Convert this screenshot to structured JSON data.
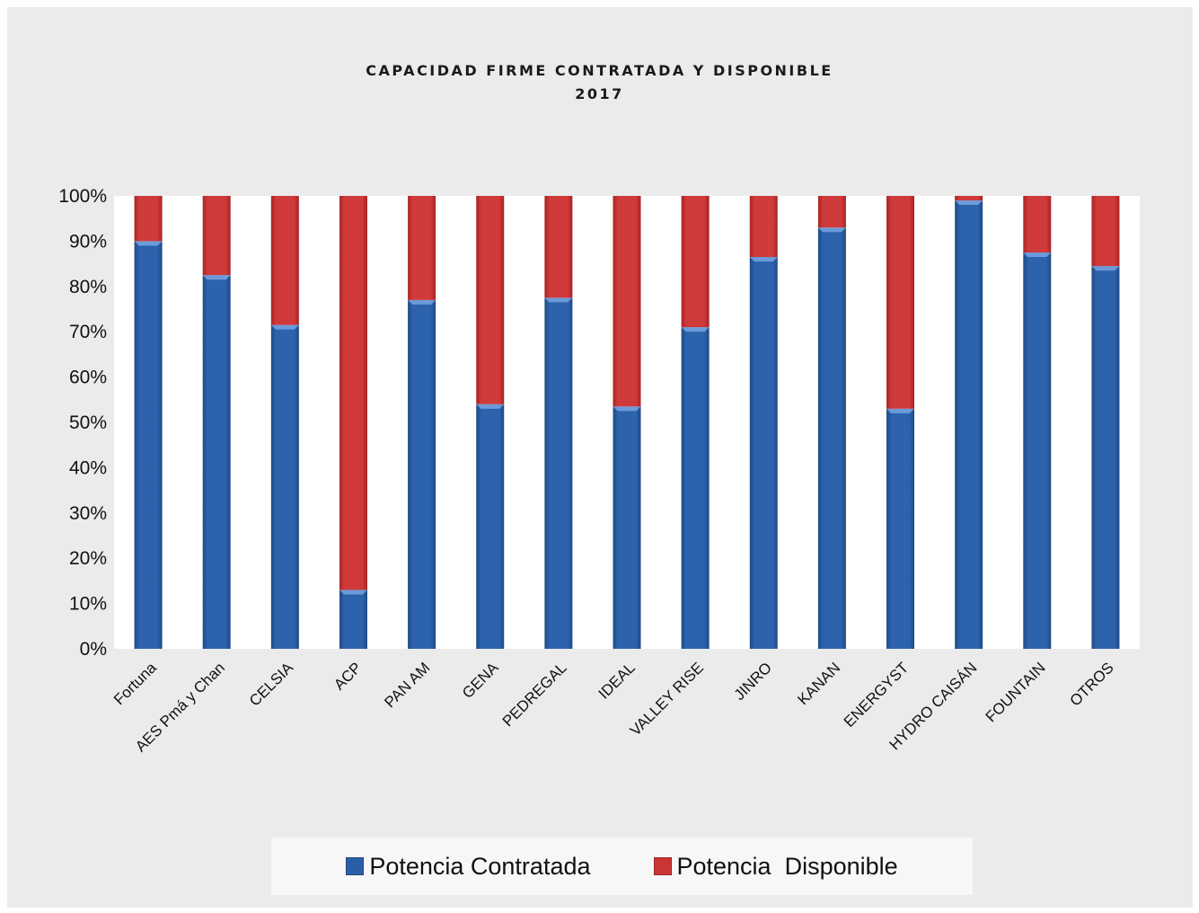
{
  "chart_data": {
    "type": "bar",
    "stacked": true,
    "percent_stacked": true,
    "title": "CAPACIDAD FIRME CONTRATADA Y DISPONIBLE",
    "subtitle": "2017",
    "categories": [
      "Fortuna",
      "AES Pmá y Chan",
      "CELSIA",
      "ACP",
      "PAN AM",
      "GENA",
      "PEDREGAL",
      "IDEAL",
      "VALLEY RISE",
      "JINRO",
      "KANAN",
      "ENERGYST",
      "HYDRO CAISÁN",
      "FOUNTAIN",
      "OTROS"
    ],
    "series": [
      {
        "name": "Potencia Contratada",
        "color": "#2a5fa8",
        "values": [
          90,
          82.5,
          71.5,
          13,
          77,
          54,
          77.5,
          53.5,
          71,
          86.5,
          93,
          53,
          99,
          87.5,
          84.5
        ]
      },
      {
        "name": "Potencia  Disponible",
        "color": "#cc3535",
        "values": [
          10,
          17.5,
          28.5,
          87,
          23,
          46,
          22.5,
          46.5,
          29,
          13.5,
          7,
          47,
          1,
          12.5,
          15.5
        ]
      }
    ],
    "y_ticks": [
      "0%",
      "10%",
      "20%",
      "30%",
      "40%",
      "50%",
      "60%",
      "70%",
      "80%",
      "90%",
      "100%"
    ],
    "ylim": [
      0,
      100
    ],
    "xlabel": "",
    "ylabel": "",
    "grid": false,
    "legend": "bottom"
  }
}
